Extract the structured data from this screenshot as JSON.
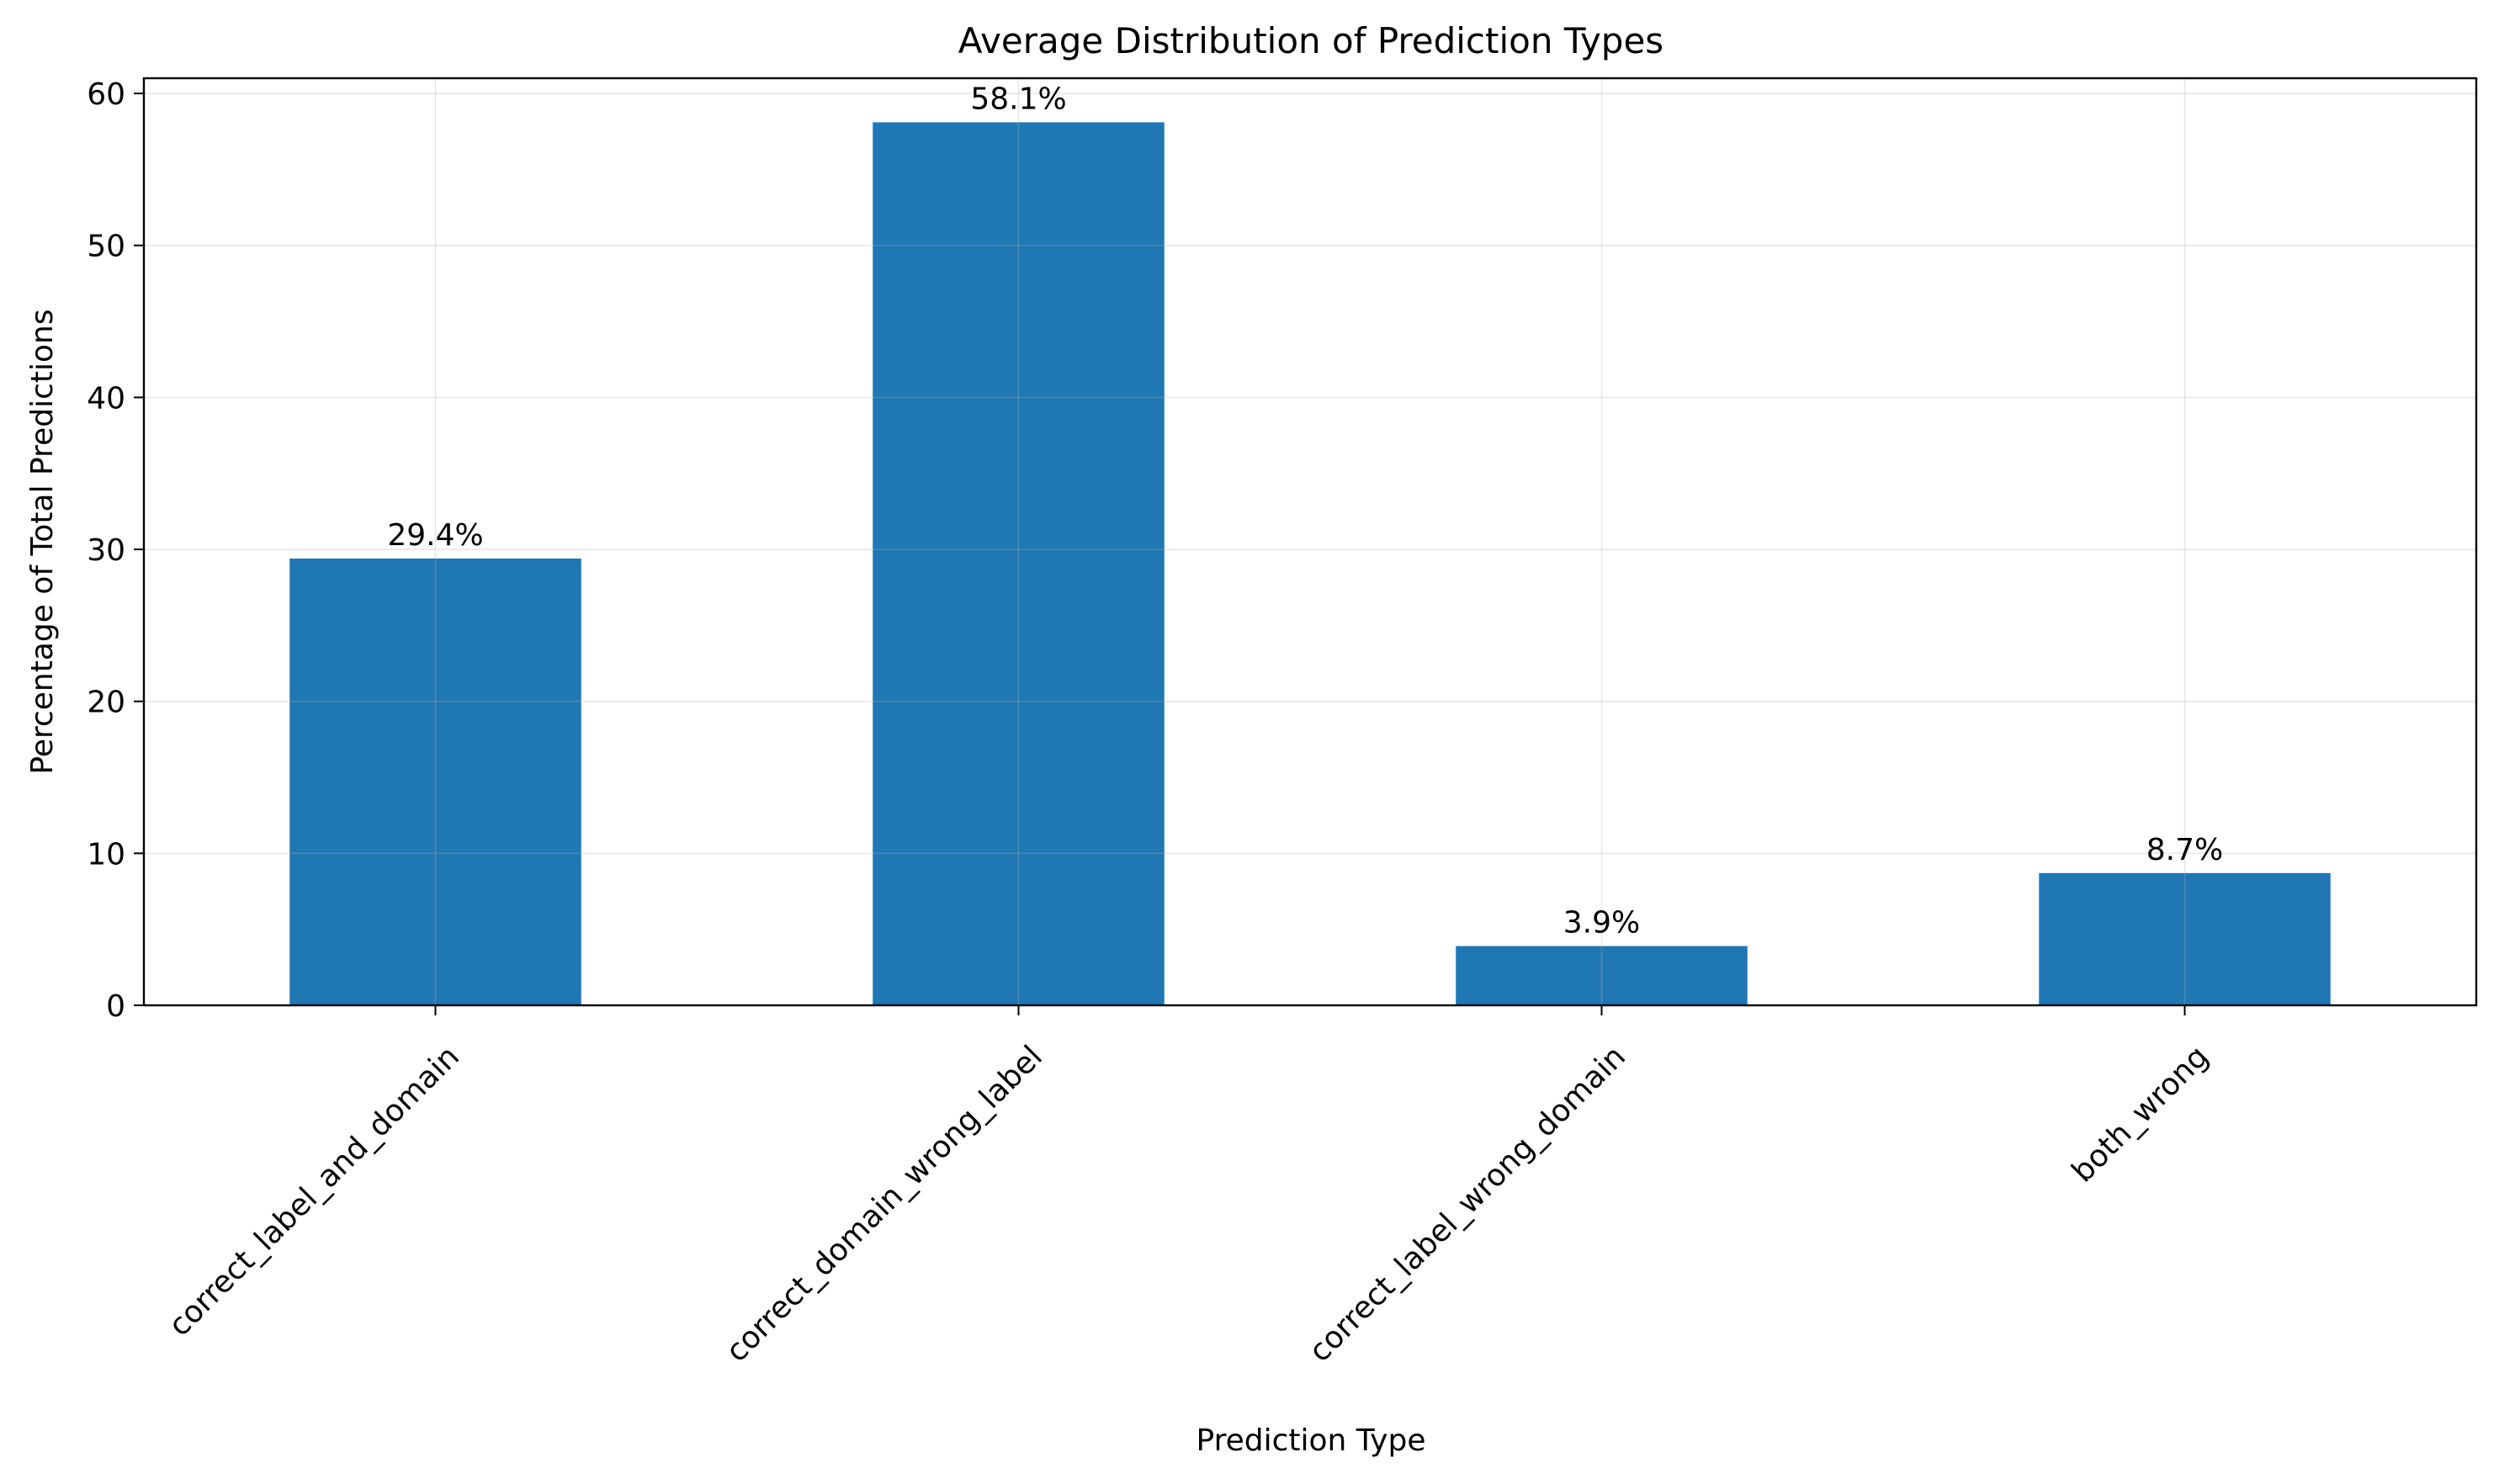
{
  "chart_data": {
    "type": "bar",
    "title": "Average Distribution of Prediction Types",
    "xlabel": "Prediction Type",
    "ylabel": "Percentage of Total Predictions",
    "categories": [
      "correct_label_and_domain",
      "correct_domain_wrong_label",
      "correct_label_wrong_domain",
      "both_wrong"
    ],
    "values": [
      29.4,
      58.1,
      3.9,
      8.7
    ],
    "data_labels": [
      "29.4%",
      "58.1%",
      "3.9%",
      "8.7%"
    ],
    "ylim": [
      0,
      61
    ],
    "yticks": [
      0,
      10,
      20,
      30,
      40,
      50,
      60
    ],
    "grid": true,
    "bar_color": "#1f77b4"
  }
}
